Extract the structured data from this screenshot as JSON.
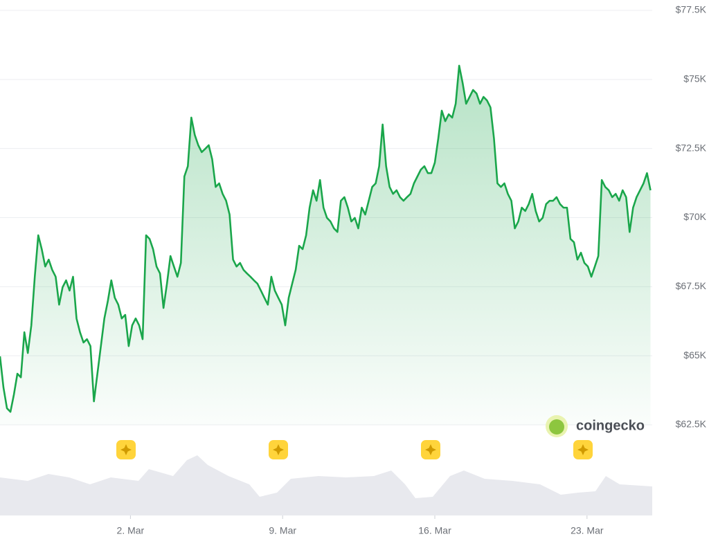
{
  "chart_data": {
    "type": "line",
    "color": "#1aa64b",
    "grid": true,
    "watermark": "coingecko",
    "xlim": [
      -4,
      26
    ],
    "ylim": [
      62500,
      77500
    ],
    "yticks": [
      {
        "value": 77500,
        "label": "$77.5K"
      },
      {
        "value": 75000,
        "label": "$75K"
      },
      {
        "value": 72500,
        "label": "$72.5K"
      },
      {
        "value": 70000,
        "label": "$70K"
      },
      {
        "value": 67500,
        "label": "$67.5K"
      },
      {
        "value": 65000,
        "label": "$65K"
      },
      {
        "value": 62500,
        "label": "$62.5K"
      }
    ],
    "xticks": [
      {
        "value": 2,
        "label": "2. Mar"
      },
      {
        "value": 9,
        "label": "9. Mar"
      },
      {
        "value": 16,
        "label": "16. Mar"
      },
      {
        "value": 23,
        "label": "23. Mar"
      }
    ],
    "x": [
      -4,
      -3.84,
      -3.68,
      -3.52,
      -3.36,
      -3.2,
      -3.04,
      -2.88,
      -2.72,
      -2.56,
      -2.4,
      -2.24,
      -2.08,
      -1.92,
      -1.76,
      -1.6,
      -1.44,
      -1.28,
      -1.12,
      -0.96,
      -0.8,
      -0.64,
      -0.48,
      -0.32,
      -0.16,
      0,
      0.16,
      0.32,
      0.48,
      0.64,
      0.8,
      0.96,
      1.12,
      1.28,
      1.44,
      1.6,
      1.76,
      1.92,
      2.08,
      2.24,
      2.4,
      2.56,
      2.72,
      2.88,
      3.04,
      3.2,
      3.36,
      3.52,
      3.68,
      3.84,
      4,
      4.16,
      4.32,
      4.48,
      4.64,
      4.8,
      4.96,
      5.12,
      5.28,
      5.44,
      5.6,
      5.76,
      5.92,
      6.08,
      6.24,
      6.4,
      6.56,
      6.72,
      6.88,
      7.04,
      7.2,
      7.36,
      7.52,
      7.68,
      7.84,
      8,
      8.16,
      8.32,
      8.48,
      8.64,
      8.8,
      8.96,
      9.12,
      9.28,
      9.44,
      9.6,
      9.76,
      9.92,
      10.08,
      10.24,
      10.4,
      10.56,
      10.72,
      10.88,
      11.04,
      11.2,
      11.36,
      11.52,
      11.68,
      11.84,
      12,
      12.16,
      12.32,
      12.48,
      12.64,
      12.8,
      12.96,
      13.12,
      13.28,
      13.44,
      13.6,
      13.76,
      13.92,
      14.08,
      14.24,
      14.4,
      14.56,
      14.72,
      14.88,
      15.04,
      15.2,
      15.36,
      15.52,
      15.68,
      15.84,
      16,
      16.16,
      16.32,
      16.48,
      16.64,
      16.8,
      16.96,
      17.12,
      17.28,
      17.44,
      17.6,
      17.76,
      17.92,
      18.08,
      18.24,
      18.4,
      18.56,
      18.72,
      18.88,
      19.04,
      19.2,
      19.36,
      19.52,
      19.68,
      19.84,
      20,
      20.16,
      20.32,
      20.48,
      20.64,
      20.8,
      20.96,
      21.12,
      21.28,
      21.44,
      21.6,
      21.76,
      21.92,
      22.08,
      22.24,
      22.4,
      22.56,
      22.72,
      22.88,
      23.04,
      23.2,
      23.36,
      23.52,
      23.68,
      23.84,
      24,
      24.16,
      24.32,
      24.48,
      24.64,
      24.8,
      24.96,
      25.12,
      25.28,
      25.44,
      25.6,
      25.76,
      25.92
    ],
    "values": [
      64980,
      63850,
      63100,
      62970,
      63600,
      64350,
      64220,
      65850,
      65100,
      66100,
      67860,
      69360,
      68860,
      68230,
      68480,
      68110,
      67860,
      66850,
      67480,
      67730,
      67360,
      67860,
      66350,
      65850,
      65480,
      65600,
      65350,
      63350,
      64350,
      65350,
      66350,
      66980,
      67730,
      67100,
      66850,
      66350,
      66480,
      65350,
      66100,
      66350,
      66100,
      65600,
      69360,
      69230,
      68860,
      68230,
      67980,
      66730,
      67610,
      68610,
      68230,
      67860,
      68360,
      71490,
      71860,
      73620,
      72990,
      72620,
      72370,
      72490,
      72620,
      72110,
      71110,
      71240,
      70860,
      70610,
      70110,
      68480,
      68230,
      68360,
      68110,
      67980,
      67860,
      67730,
      67610,
      67360,
      67100,
      66850,
      67860,
      67360,
      67100,
      66850,
      66100,
      67100,
      67610,
      68110,
      68980,
      68860,
      69360,
      70360,
      70990,
      70610,
      71360,
      70360,
      69990,
      69860,
      69610,
      69480,
      70610,
      70740,
      70360,
      69860,
      69990,
      69610,
      70360,
      70110,
      70610,
      71110,
      71240,
      71860,
      73370,
      71860,
      71110,
      70860,
      70990,
      70740,
      70610,
      70740,
      70860,
      71240,
      71490,
      71740,
      71860,
      71610,
      71610,
      71990,
      72870,
      73870,
      73490,
      73740,
      73620,
      74120,
      75500,
      74870,
      74120,
      74370,
      74620,
      74490,
      74120,
      74370,
      74240,
      73990,
      72870,
      71240,
      71110,
      71240,
      70860,
      70610,
      69610,
      69860,
      70360,
      70240,
      70490,
      70860,
      70240,
      69860,
      69990,
      70490,
      70610,
      70610,
      70740,
      70490,
      70360,
      70360,
      69230,
      69110,
      68480,
      68730,
      68360,
      68230,
      67860,
      68230,
      68610,
      71360,
      71110,
      70990,
      70740,
      70860,
      70610,
      70990,
      70740,
      69480,
      70360,
      70740,
      70990,
      71240,
      71610,
      70990
    ]
  }
}
